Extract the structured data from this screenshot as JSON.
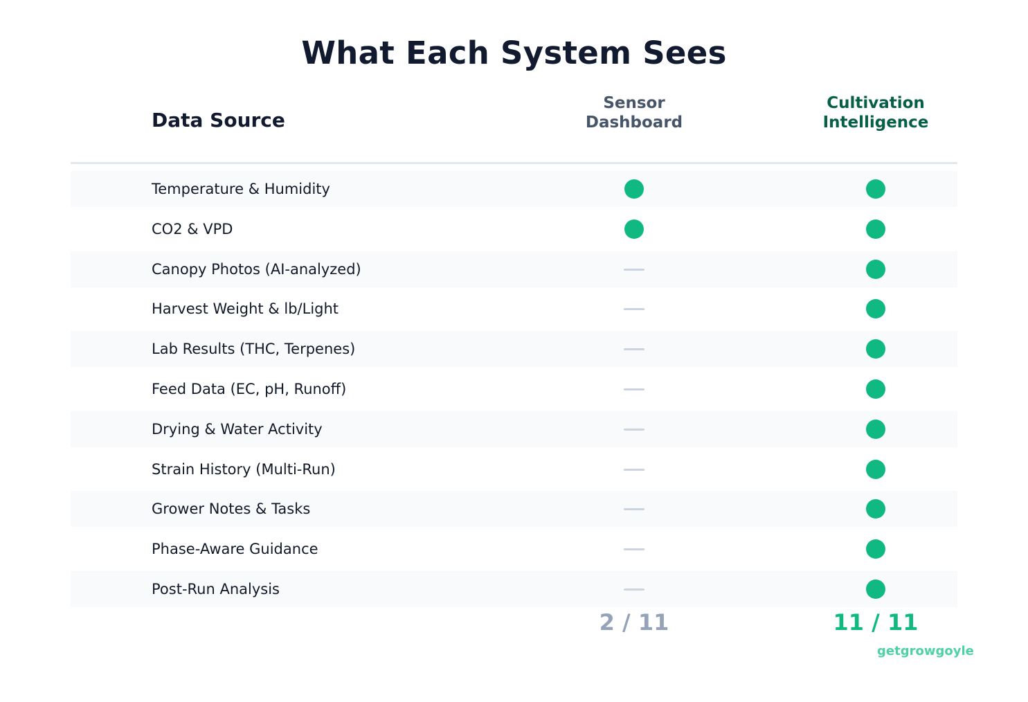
{
  "chart_data": {
    "type": "table",
    "title": "What Each System Sees",
    "columns": [
      "Data Source",
      "Sensor\nDashboard",
      "Cultivation\nIntelligence"
    ],
    "rows": [
      {
        "label": "Temperature & Humidity",
        "sensor_dashboard": true,
        "cultivation_intelligence": true
      },
      {
        "label": "CO2 & VPD",
        "sensor_dashboard": true,
        "cultivation_intelligence": true
      },
      {
        "label": "Canopy Photos (AI-analyzed)",
        "sensor_dashboard": false,
        "cultivation_intelligence": true
      },
      {
        "label": "Harvest Weight & lb/Light",
        "sensor_dashboard": false,
        "cultivation_intelligence": true
      },
      {
        "label": "Lab Results (THC, Terpenes)",
        "sensor_dashboard": false,
        "cultivation_intelligence": true
      },
      {
        "label": "Feed Data (EC, pH, Runoff)",
        "sensor_dashboard": false,
        "cultivation_intelligence": true
      },
      {
        "label": "Drying & Water Activity",
        "sensor_dashboard": false,
        "cultivation_intelligence": true
      },
      {
        "label": "Strain History (Multi-Run)",
        "sensor_dashboard": false,
        "cultivation_intelligence": true
      },
      {
        "label": "Grower Notes & Tasks",
        "sensor_dashboard": false,
        "cultivation_intelligence": true
      },
      {
        "label": "Phase-Aware Guidance",
        "sensor_dashboard": false,
        "cultivation_intelligence": true
      },
      {
        "label": "Post-Run Analysis",
        "sensor_dashboard": false,
        "cultivation_intelligence": true
      }
    ],
    "totals": {
      "sensor_dashboard": "2 / 11",
      "cultivation_intelligence": "11 / 11"
    }
  },
  "brand": "getgrowgoyle",
  "colors": {
    "check": "#10b981",
    "dash": "#cbd5e1",
    "sensor_header": "#475569",
    "ci_header": "#065f46",
    "sensor_total": "#94a3b8",
    "ci_total": "#10b981",
    "brand": "#4fd1a5",
    "row_shade": "#f8fafc"
  }
}
